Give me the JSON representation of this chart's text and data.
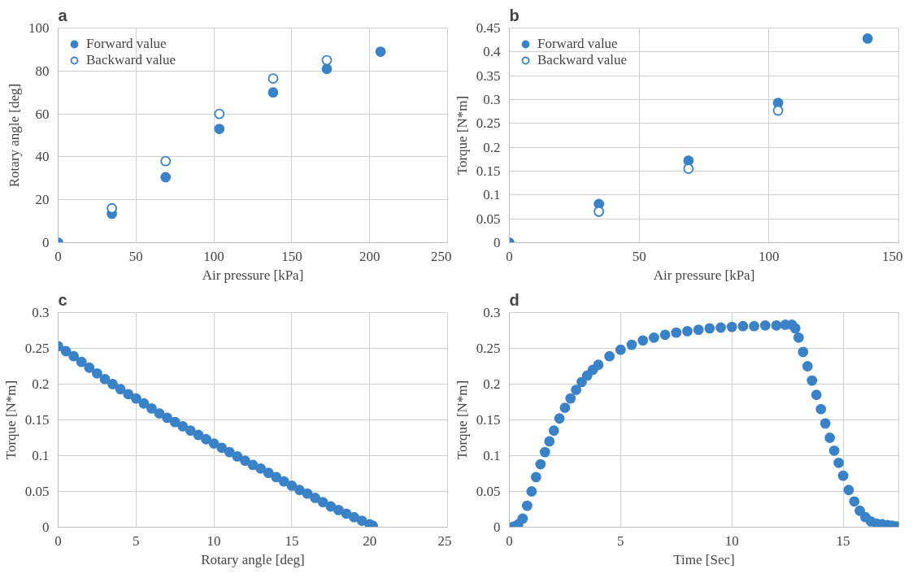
{
  "chart_data": [
    {
      "type": "scatter",
      "title": "a",
      "xlabel": "Air pressure [kPa]",
      "ylabel": "Rotary angle [deg]",
      "x": [
        0,
        34.5,
        69,
        103.5,
        138,
        172.5,
        207
      ],
      "xlim": [
        0,
        250
      ],
      "xticks": [
        0,
        50,
        100,
        150,
        200,
        250
      ],
      "ylim": [
        0,
        100
      ],
      "yticks": [
        0,
        20,
        40,
        60,
        80,
        100
      ],
      "grid": true,
      "legend": "top left",
      "marker": "circle",
      "series": [
        {
          "name": "Forward value",
          "color": "#3a82c8",
          "values": [
            0,
            13.5,
            30.5,
            53,
            70,
            81,
            89
          ]
        },
        {
          "name": "Backward value",
          "color": "#3a82c8",
          "values": [
            null,
            16,
            38,
            60,
            76.5,
            85,
            null
          ]
        }
      ]
    },
    {
      "type": "scatter",
      "title": "b",
      "xlabel": "Air pressure [kPa]",
      "ylabel": "Torque [N*m]",
      "x": [
        0,
        34.5,
        69,
        103.5,
        138
      ],
      "xlim": [
        0,
        150
      ],
      "xticks": [
        0,
        50,
        100,
        150
      ],
      "ylim": [
        0,
        0.45
      ],
      "yticks": [
        0,
        0.05,
        0.1,
        0.15,
        0.2,
        0.25,
        0.3,
        0.35,
        0.4,
        0.45
      ],
      "grid": true,
      "legend": "top left",
      "marker": "circle",
      "series": [
        {
          "name": "Forward value",
          "color": "#3a82c8",
          "values": [
            0,
            0.081,
            0.172,
            0.293,
            0.428
          ]
        },
        {
          "name": "Backward value",
          "color": "#3a82c8",
          "values": [
            null,
            0.065,
            0.155,
            0.277,
            null
          ]
        }
      ]
    },
    {
      "type": "scatter",
      "title": "c",
      "xlabel": "Rotary angle [deg]",
      "ylabel": "Torque [N*m]",
      "xlim": [
        0,
        25
      ],
      "xticks": [
        0,
        5,
        10,
        15,
        20,
        25
      ],
      "ylim": [
        0,
        0.3
      ],
      "yticks": [
        0,
        0.05,
        0.1,
        0.15,
        0.2,
        0.25,
        0.3
      ],
      "grid": true,
      "marker": "circle",
      "series": [
        {
          "color": "#3a82c8",
          "x": [
            0,
            0.5,
            1,
            1.5,
            2,
            2.5,
            3,
            3.5,
            4,
            4.5,
            5,
            5.5,
            6,
            6.5,
            7,
            7.5,
            8,
            8.5,
            9,
            9.5,
            10,
            10.5,
            11,
            11.5,
            12,
            12.5,
            13,
            13.5,
            14,
            14.5,
            15,
            15.5,
            16,
            16.5,
            17,
            17.5,
            18,
            18.5,
            19,
            19.5,
            20,
            20.2
          ],
          "values": [
            0.253,
            0.246,
            0.239,
            0.231,
            0.223,
            0.215,
            0.207,
            0.2,
            0.193,
            0.186,
            0.18,
            0.173,
            0.166,
            0.159,
            0.153,
            0.147,
            0.141,
            0.135,
            0.129,
            0.123,
            0.117,
            0.111,
            0.105,
            0.099,
            0.093,
            0.087,
            0.082,
            0.076,
            0.07,
            0.064,
            0.058,
            0.052,
            0.047,
            0.041,
            0.035,
            0.029,
            0.024,
            0.019,
            0.014,
            0.009,
            0.004,
            0.002
          ]
        }
      ]
    },
    {
      "type": "scatter",
      "title": "d",
      "xlabel": "Time [Sec]",
      "ylabel": "Torque [N*m]",
      "xlim": [
        0,
        17.5
      ],
      "xticks": [
        0,
        5,
        10,
        15
      ],
      "ylim": [
        0,
        0.3
      ],
      "yticks": [
        0,
        0.05,
        0.1,
        0.15,
        0.2,
        0.25,
        0.3
      ],
      "grid": true,
      "marker": "circle",
      "series": [
        {
          "color": "#3a82c8",
          "x": [
            0.2,
            0.4,
            0.6,
            0.8,
            1,
            1.2,
            1.4,
            1.6,
            1.8,
            2,
            2.25,
            2.5,
            2.75,
            3,
            3.25,
            3.5,
            3.75,
            4,
            4.5,
            5,
            5.5,
            6,
            6.5,
            7,
            7.5,
            8,
            8.5,
            9,
            9.5,
            10,
            10.5,
            11,
            11.5,
            12,
            12.4,
            12.7,
            12.85,
            13,
            13.2,
            13.4,
            13.6,
            13.8,
            14,
            14.2,
            14.4,
            14.6,
            14.8,
            15,
            15.25,
            15.5,
            15.75,
            16,
            16.25,
            16.5,
            16.75,
            17,
            17.2,
            17.4
          ],
          "values": [
            0.001,
            0.004,
            0.012,
            0.03,
            0.05,
            0.07,
            0.088,
            0.105,
            0.12,
            0.135,
            0.152,
            0.167,
            0.18,
            0.192,
            0.203,
            0.212,
            0.22,
            0.227,
            0.239,
            0.248,
            0.255,
            0.261,
            0.265,
            0.269,
            0.272,
            0.274,
            0.276,
            0.278,
            0.279,
            0.28,
            0.281,
            0.281,
            0.282,
            0.282,
            0.283,
            0.283,
            0.278,
            0.265,
            0.245,
            0.225,
            0.205,
            0.185,
            0.165,
            0.145,
            0.125,
            0.107,
            0.09,
            0.072,
            0.052,
            0.036,
            0.023,
            0.014,
            0.008,
            0.005,
            0.004,
            0.003,
            0.002,
            0.001
          ]
        }
      ]
    }
  ]
}
